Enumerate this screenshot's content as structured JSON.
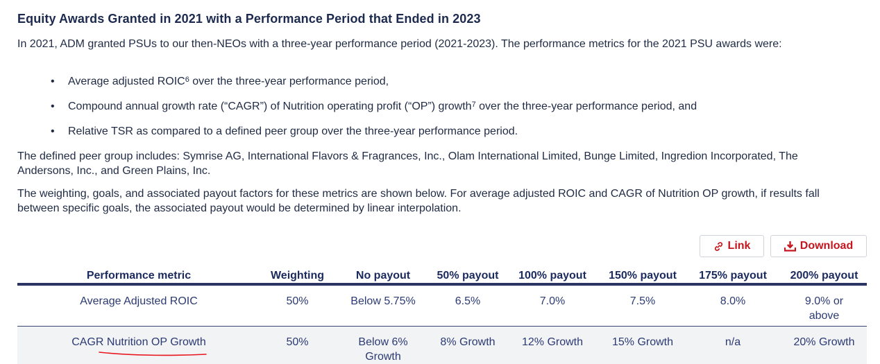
{
  "title": "Equity Awards Granted in 2021 with a Performance Period that Ended in 2023",
  "intro": "In 2021, ADM granted PSUs to our then-NEOs with a three-year performance period (2021-2023). The performance metrics for the 2021 PSU awards were:",
  "bullets": [
    {
      "text": "Average adjusted ROIC",
      "sup": "6",
      "rest": " over the three-year performance period,"
    },
    {
      "text": "Compound annual growth rate (“CAGR”) of Nutrition operating profit (“OP”) growth",
      "sup": "7",
      "rest": " over the three-year performance period, and"
    },
    {
      "text": "Relative TSR as compared to a defined peer group over the three-year performance period.",
      "sup": "",
      "rest": ""
    }
  ],
  "bullet_char": "•",
  "peer_group": "The defined peer group includes: Symrise AG, International Flavors & Fragrances, Inc., Olam International Limited, Bunge Limited, Ingredion Incorporated, The Andersons, Inc., and Green Plains, Inc.",
  "weighting_note": "The weighting, goals, and associated payout factors for these metrics are shown below. For average adjusted ROIC and CAGR of Nutrition OP growth, if results fall between specific goals, the associated payout would be determined by linear interpolation.",
  "buttons": {
    "link": "Link",
    "download": "Download"
  },
  "table": {
    "headers": [
      "Performance metric",
      "Weighting",
      "No payout",
      "50% payout",
      "100% payout",
      "150% payout",
      "175% payout",
      "200% payout"
    ],
    "rows": [
      [
        "Average Adjusted ROIC",
        "50%",
        "Below 5.75%",
        "6.5%",
        "7.0%",
        "7.5%",
        "8.0%",
        "9.0% or above"
      ],
      [
        "CAGR Nutrition OP Growth",
        "50%",
        "Below 6% Growth",
        "8% Growth",
        "12% Growth",
        "15% Growth",
        "n/a",
        "20% Growth"
      ]
    ]
  },
  "colors": {
    "title": "#1b2a4e",
    "accent_red": "#c4161c",
    "rule": "#2b3564",
    "annotation": "#e8141b"
  }
}
